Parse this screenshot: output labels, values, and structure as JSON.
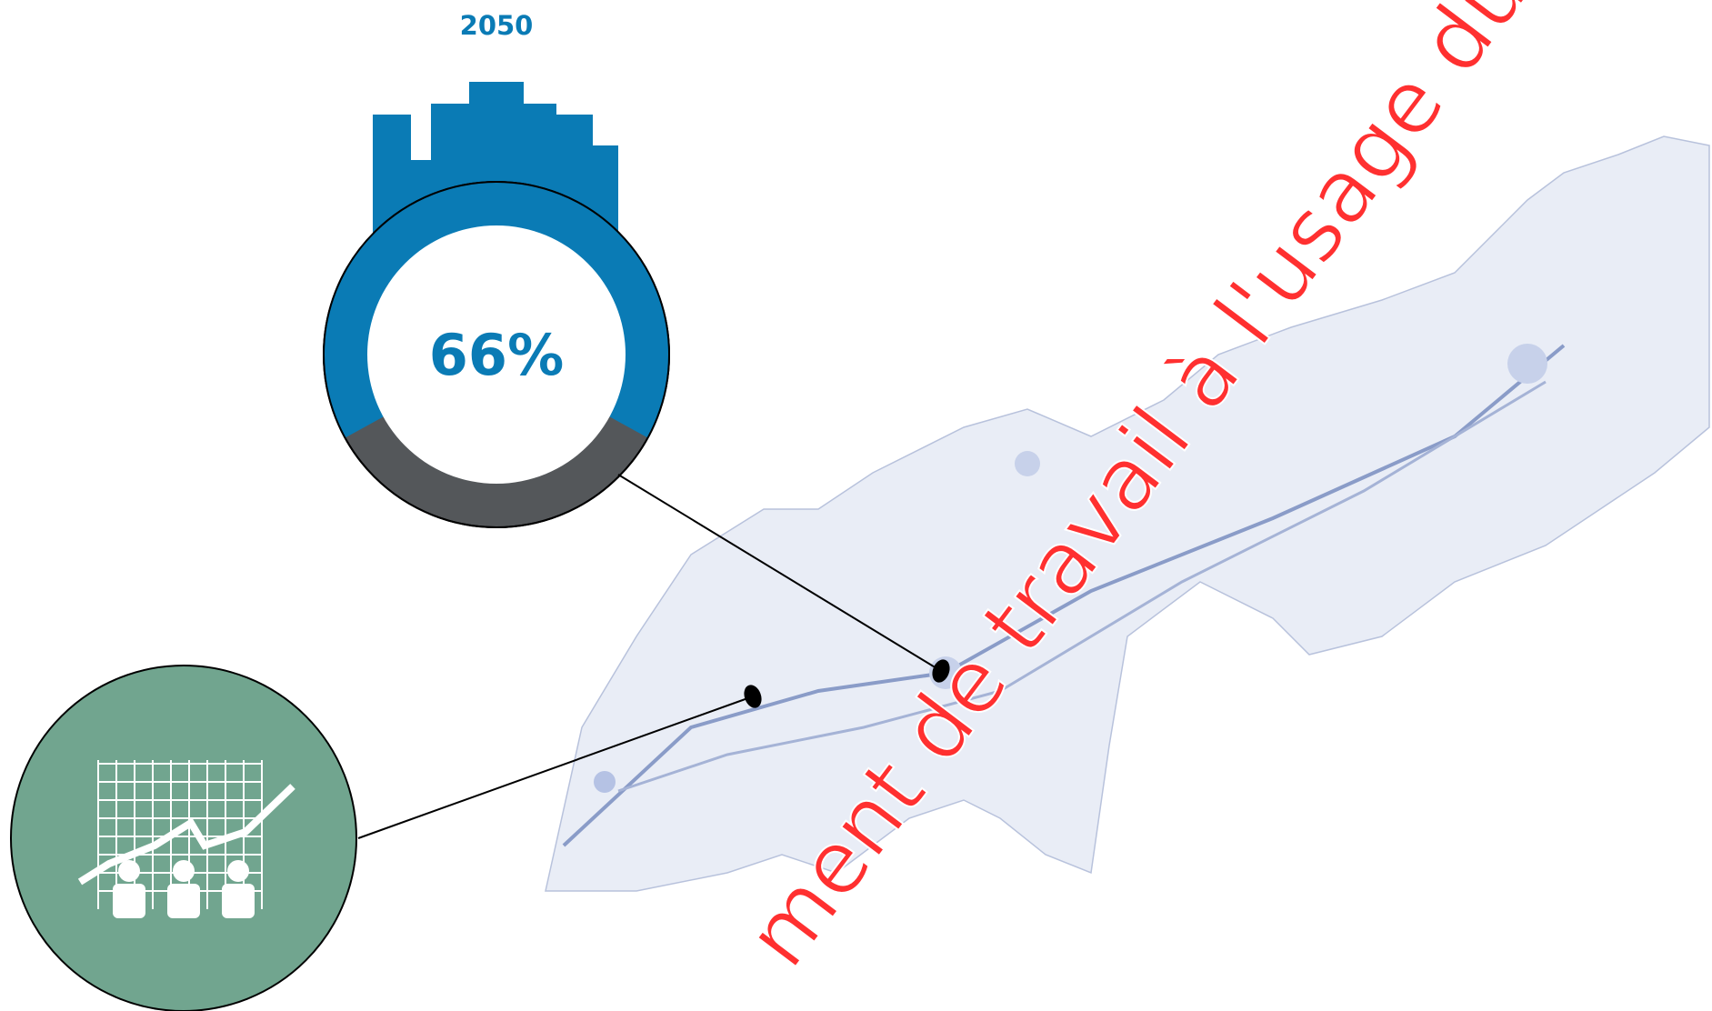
{
  "chart_data": {
    "type": "donut",
    "title": "2050",
    "values": [
      66
    ],
    "value_labels": [
      "66%"
    ],
    "color": "#0a7bb5",
    "rest_color": "#54575a"
  },
  "watermark": "ment de travail à l'usage du Conseil"
}
